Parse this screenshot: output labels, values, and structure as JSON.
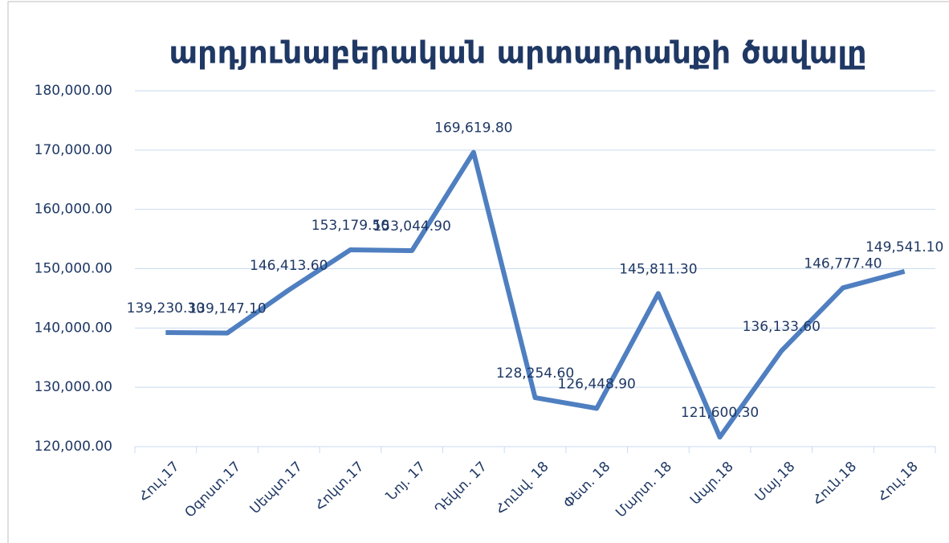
{
  "chart_data": {
    "type": "line",
    "title": "արդյունաբերական արտադրանքի ծավալը",
    "categories": [
      "Հուլ.17",
      "Օգոստ.17",
      "Սեպտ.17",
      "Հոկտ.17",
      "Նոյ. 17",
      "Դեկտ. 17",
      "Հունվ. 18",
      "Փետ. 18",
      "Մարտ. 18",
      "Ապր.18",
      "Մայ.18",
      "Հուն.18",
      "Հուլ.18"
    ],
    "series": [
      {
        "name": "արդյունաբերական արտադրանքի ծավալը",
        "color": "#4f7fc0",
        "values": [
          139230.3,
          139147.1,
          146413.6,
          153179.5,
          153044.9,
          169619.8,
          128254.6,
          126448.9,
          145811.3,
          121600.3,
          136133.6,
          146777.4,
          149541.1
        ],
        "value_labels": [
          "139,230.30",
          "139,147.10",
          "146,413.60",
          "153,179.50",
          "153,044.90",
          "169,619.80",
          "128,254.60",
          "126,448.90",
          "145,811.30",
          "121,600.30",
          "136,133.60",
          "146,777.40",
          "149,541.10"
        ]
      }
    ],
    "ylim": [
      120000,
      180000
    ],
    "yticks": [
      {
        "value": 120000,
        "label": "120,000.00"
      },
      {
        "value": 130000,
        "label": "130,000.00"
      },
      {
        "value": 140000,
        "label": "140,000.00"
      },
      {
        "value": 150000,
        "label": "150,000.00"
      },
      {
        "value": 160000,
        "label": "160,000.00"
      },
      {
        "value": 170000,
        "label": "170,000.00"
      },
      {
        "value": 180000,
        "label": "180,000.00"
      }
    ],
    "grid": true
  }
}
